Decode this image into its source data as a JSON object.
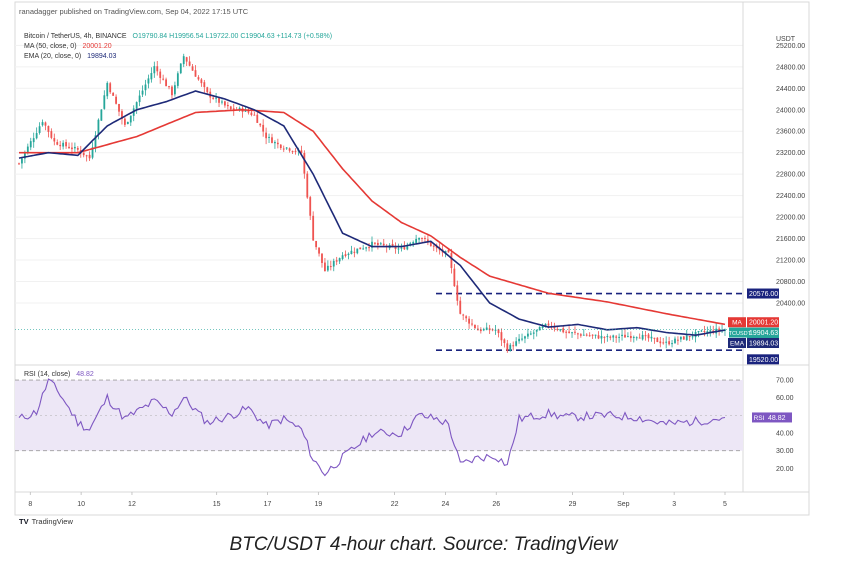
{
  "publisher_line": "ranadagger published on TradingView.com, Sep 04, 2022 17:15 UTC",
  "caption": "BTC/USDT 4-hour chart. Source: TradingView",
  "tradingview_logo": "TradingView",
  "currency": "USDT",
  "colors": {
    "up": "#26a69a",
    "down": "#ef5350",
    "ma": "#e53935",
    "ema": "#1e2a78",
    "rsi": "#7e57c2",
    "rsi_band": "#ede7f6",
    "level": "#1a237e",
    "price": "#26a69a"
  },
  "chart_data": [
    {
      "type": "candlestick",
      "legend": {
        "symbol": "Bitcoin / TetherUS, 4h, BINANCE",
        "ohlc": "O19790.84 H19956.54 L19722.00 C19904.63 +114.73 (+0.58%)",
        "ma_label": "MA (50, close, 0)",
        "ma_value": "20001.20",
        "ema_label": "EMA (20, close, 0)",
        "ema_value": "19894.03"
      },
      "y_ticks": [
        "25200.00",
        "24800.00",
        "24400.00",
        "24000.00",
        "23600.00",
        "23200.00",
        "22800.00",
        "22400.00",
        "22000.00",
        "21600.00",
        "21200.00",
        "20800.00",
        "20400.00"
      ],
      "ylim": [
        19300,
        25300
      ],
      "x_ticks": [
        "8",
        "10",
        "12",
        "15",
        "17",
        "19",
        "22",
        "24",
        "26",
        "29",
        "Sep",
        "3",
        "5"
      ],
      "levels": [
        20576.0,
        19520.0
      ],
      "badges": [
        {
          "label": "",
          "value": "20576.00"
        },
        {
          "label": "MA",
          "value": "20001.20"
        },
        {
          "label": "BTCUSDT",
          "value": "19904.63",
          "sub": "02:44:58"
        },
        {
          "label": "EMA",
          "value": "19894.03"
        },
        {
          "label": "",
          "value": "19520.00"
        }
      ],
      "series": [
        {
          "name": "BTCUSDT",
          "key_points": [
            [
              0,
              23000
            ],
            [
              8,
              23800
            ],
            [
              12,
              23400
            ],
            [
              20,
              23250
            ],
            [
              24,
              23100
            ],
            [
              30,
              24500
            ],
            [
              36,
              23700
            ],
            [
              46,
              24800
            ],
            [
              52,
              24300
            ],
            [
              56,
              25000
            ],
            [
              64,
              24300
            ],
            [
              72,
              24000
            ],
            [
              76,
              24000
            ],
            [
              80,
              23900
            ],
            [
              84,
              23500
            ],
            [
              88,
              23350
            ],
            [
              96,
              23200
            ],
            [
              100,
              21600
            ],
            [
              104,
              21000
            ],
            [
              110,
              21300
            ],
            [
              120,
              21500
            ],
            [
              130,
              21400
            ],
            [
              136,
              21650
            ],
            [
              142,
              21400
            ],
            [
              146,
              21300
            ],
            [
              150,
              20200
            ],
            [
              156,
              19900
            ],
            [
              162,
              19900
            ],
            [
              166,
              19550
            ],
            [
              170,
              19700
            ],
            [
              180,
              20000
            ],
            [
              186,
              19850
            ],
            [
              200,
              19750
            ],
            [
              210,
              19800
            ],
            [
              220,
              19650
            ],
            [
              232,
              19850
            ],
            [
              240,
              19904.63
            ]
          ]
        },
        {
          "name": "MA",
          "key_points": [
            [
              0,
              23200
            ],
            [
              20,
              23200
            ],
            [
              40,
              23500
            ],
            [
              60,
              23950
            ],
            [
              76,
              24000
            ],
            [
              90,
              23950
            ],
            [
              100,
              23600
            ],
            [
              110,
              22900
            ],
            [
              120,
              22300
            ],
            [
              130,
              21900
            ],
            [
              140,
              21650
            ],
            [
              150,
              21250
            ],
            [
              160,
              20900
            ],
            [
              180,
              20580
            ],
            [
              200,
              20420
            ],
            [
              220,
              20200
            ],
            [
              240,
              20001.2
            ]
          ]
        },
        {
          "name": "EMA",
          "key_points": [
            [
              0,
              23100
            ],
            [
              10,
              23200
            ],
            [
              20,
              23150
            ],
            [
              30,
              23700
            ],
            [
              40,
              24000
            ],
            [
              50,
              24150
            ],
            [
              60,
              24350
            ],
            [
              70,
              24200
            ],
            [
              80,
              24000
            ],
            [
              90,
              23700
            ],
            [
              100,
              22800
            ],
            [
              110,
              21700
            ],
            [
              120,
              21450
            ],
            [
              130,
              21450
            ],
            [
              140,
              21550
            ],
            [
              150,
              21100
            ],
            [
              160,
              20400
            ],
            [
              170,
              20100
            ],
            [
              180,
              19950
            ],
            [
              190,
              20000
            ],
            [
              200,
              19900
            ],
            [
              210,
              19940
            ],
            [
              220,
              19850
            ],
            [
              230,
              19800
            ],
            [
              240,
              19894.03
            ]
          ]
        }
      ]
    },
    {
      "type": "line",
      "legend": "RSI (14, close)",
      "rsi_value": "48.82",
      "y_ticks": [
        "70.00",
        "60.00",
        "40.00",
        "30.00",
        "20.00"
      ],
      "ylim": [
        10,
        74
      ],
      "band": [
        30,
        70
      ],
      "series": [
        {
          "name": "RSI",
          "key_points": [
            [
              0,
              48
            ],
            [
              6,
              52
            ],
            [
              10,
              70
            ],
            [
              14,
              62
            ],
            [
              20,
              46
            ],
            [
              24,
              42
            ],
            [
              30,
              60
            ],
            [
              36,
              48
            ],
            [
              46,
              58
            ],
            [
              52,
              51
            ],
            [
              56,
              60
            ],
            [
              64,
              46
            ],
            [
              72,
              50
            ],
            [
              78,
              54
            ],
            [
              84,
              44
            ],
            [
              90,
              48
            ],
            [
              96,
              42
            ],
            [
              100,
              25
            ],
            [
              104,
              17
            ],
            [
              110,
              26
            ],
            [
              120,
              40
            ],
            [
              130,
              40
            ],
            [
              136,
              50
            ],
            [
              142,
              48
            ],
            [
              146,
              45
            ],
            [
              150,
              22
            ],
            [
              156,
              26
            ],
            [
              162,
              27
            ],
            [
              166,
              22
            ],
            [
              170,
              48
            ],
            [
              180,
              51
            ],
            [
              186,
              49
            ],
            [
              200,
              50
            ],
            [
              210,
              49
            ],
            [
              220,
              45
            ],
            [
              232,
              47
            ],
            [
              240,
              48.82
            ]
          ]
        }
      ]
    }
  ]
}
